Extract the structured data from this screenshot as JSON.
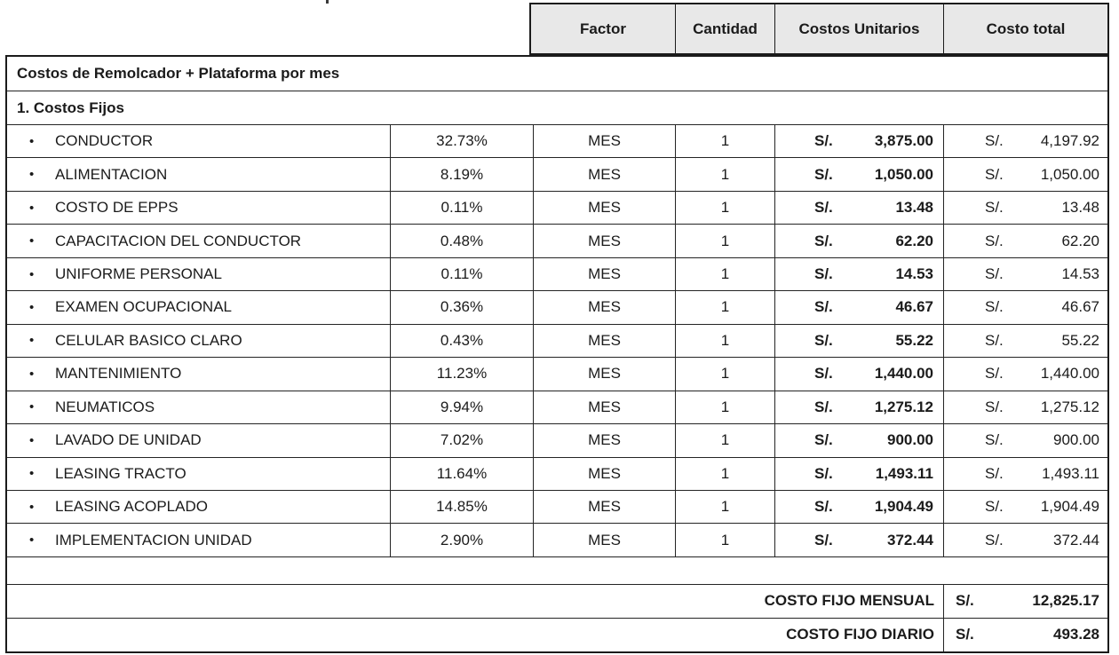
{
  "colors": {
    "header_bg": "#e8e8e8",
    "border": "#1b1b1b",
    "text": "#1b1b1b"
  },
  "header": {
    "columns": [
      "Factor",
      "Cantidad",
      "Costos Unitarios",
      "Costo total"
    ]
  },
  "table": {
    "title": "Costos de Remolcador + Plataforma por mes",
    "section": "1. Costos Fijos",
    "currency": "S/.",
    "bullet": "•",
    "rows": [
      {
        "name": "CONDUCTOR",
        "factor": "32.73%",
        "unit": "MES",
        "qty": "1",
        "unit_cost": "3,875.00",
        "total": "4,197.92"
      },
      {
        "name": "ALIMENTACION",
        "factor": "8.19%",
        "unit": "MES",
        "qty": "1",
        "unit_cost": "1,050.00",
        "total": "1,050.00"
      },
      {
        "name": "COSTO DE EPPS",
        "factor": "0.11%",
        "unit": "MES",
        "qty": "1",
        "unit_cost": "13.48",
        "total": "13.48"
      },
      {
        "name": "CAPACITACION DEL CONDUCTOR",
        "factor": "0.48%",
        "unit": "MES",
        "qty": "1",
        "unit_cost": "62.20",
        "total": "62.20"
      },
      {
        "name": "UNIFORME PERSONAL",
        "factor": "0.11%",
        "unit": "MES",
        "qty": "1",
        "unit_cost": "14.53",
        "total": "14.53"
      },
      {
        "name": "EXAMEN OCUPACIONAL",
        "factor": "0.36%",
        "unit": "MES",
        "qty": "1",
        "unit_cost": "46.67",
        "total": "46.67"
      },
      {
        "name": "CELULAR BASICO CLARO",
        "factor": "0.43%",
        "unit": "MES",
        "qty": "1",
        "unit_cost": "55.22",
        "total": "55.22"
      },
      {
        "name": "MANTENIMIENTO",
        "factor": "11.23%",
        "unit": "MES",
        "qty": "1",
        "unit_cost": "1,440.00",
        "total": "1,440.00"
      },
      {
        "name": "NEUMATICOS",
        "factor": "9.94%",
        "unit": "MES",
        "qty": "1",
        "unit_cost": "1,275.12",
        "total": "1,275.12"
      },
      {
        "name": "LAVADO DE UNIDAD",
        "factor": "7.02%",
        "unit": "MES",
        "qty": "1",
        "unit_cost": "900.00",
        "total": "900.00"
      },
      {
        "name": "LEASING TRACTO",
        "factor": "11.64%",
        "unit": "MES",
        "qty": "1",
        "unit_cost": "1,493.11",
        "total": "1,493.11"
      },
      {
        "name": "LEASING ACOPLADO",
        "factor": "14.85%",
        "unit": "MES",
        "qty": "1",
        "unit_cost": "1,904.49",
        "total": "1,904.49"
      },
      {
        "name": "IMPLEMENTACION UNIDAD",
        "factor": "2.90%",
        "unit": "MES",
        "qty": "1",
        "unit_cost": "372.44",
        "total": "372.44"
      }
    ],
    "summary": [
      {
        "label": "COSTO FIJO MENSUAL",
        "value": "12,825.17"
      },
      {
        "label": "COSTO FIJO DIARIO",
        "value": "493.28"
      }
    ]
  }
}
